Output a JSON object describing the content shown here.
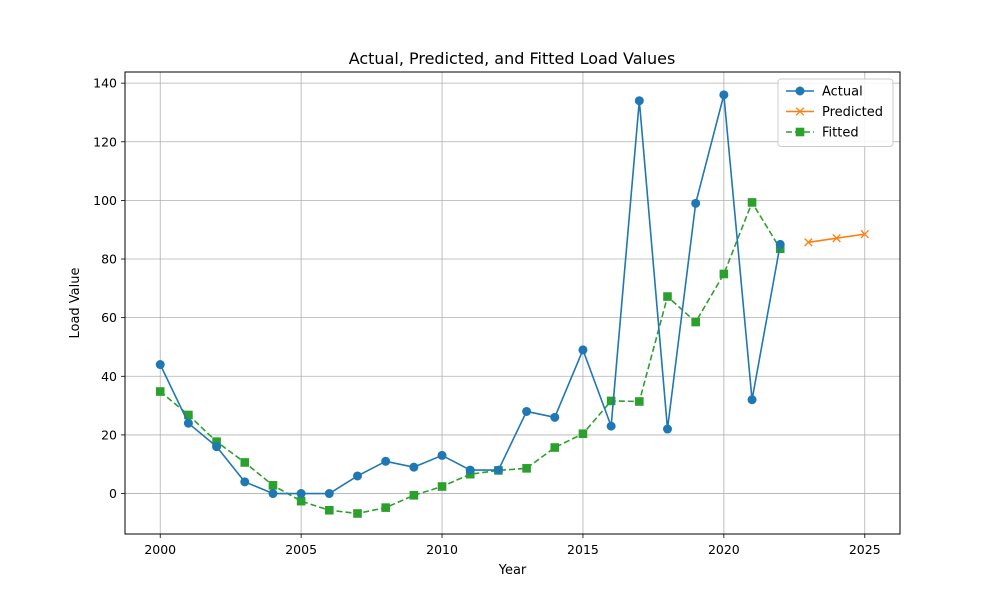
{
  "chart_data": {
    "type": "line",
    "title": "Actual, Predicted, and Fitted Load Values",
    "xlabel": "Year",
    "ylabel": "Load Value",
    "xlim": [
      1998.75,
      2026.25
    ],
    "ylim": [
      -13.8,
      143.8
    ],
    "xticks": [
      2000,
      2005,
      2010,
      2015,
      2020,
      2025
    ],
    "yticks": [
      0,
      20,
      40,
      60,
      80,
      100,
      120,
      140
    ],
    "grid": true,
    "legend_position": "top-right",
    "series": [
      {
        "name": "Actual",
        "color": "#1f77b4",
        "marker": "circle",
        "linestyle": "solid",
        "x": [
          2000,
          2001,
          2002,
          2003,
          2004,
          2005,
          2006,
          2007,
          2008,
          2009,
          2010,
          2011,
          2012,
          2013,
          2014,
          2015,
          2016,
          2017,
          2018,
          2019,
          2020,
          2021,
          2022
        ],
        "y": [
          44,
          24,
          16,
          4,
          0,
          0,
          0,
          6,
          11,
          9,
          13,
          8,
          8,
          28,
          26,
          49,
          23,
          134,
          22,
          99,
          136,
          32,
          85
        ]
      },
      {
        "name": "Predicted",
        "color": "#ff7f0e",
        "marker": "x",
        "linestyle": "solid",
        "x": [
          2023,
          2024,
          2025
        ],
        "y": [
          85.7,
          87.1,
          88.5
        ]
      },
      {
        "name": "Fitted",
        "color": "#2ca02c",
        "marker": "square",
        "linestyle": "dashed",
        "x": [
          2000,
          2001,
          2002,
          2003,
          2004,
          2005,
          2006,
          2007,
          2008,
          2009,
          2010,
          2011,
          2012,
          2013,
          2014,
          2015,
          2016,
          2017,
          2018,
          2019,
          2020,
          2021,
          2022
        ],
        "y": [
          34.8,
          26.8,
          17.7,
          10.6,
          2.8,
          -2.6,
          -5.7,
          -6.8,
          -4.8,
          -0.6,
          2.4,
          6.6,
          7.9,
          8.6,
          15.7,
          20.4,
          31.6,
          31.4,
          67.2,
          58.5,
          74.9,
          99.3,
          83.5
        ]
      }
    ]
  }
}
